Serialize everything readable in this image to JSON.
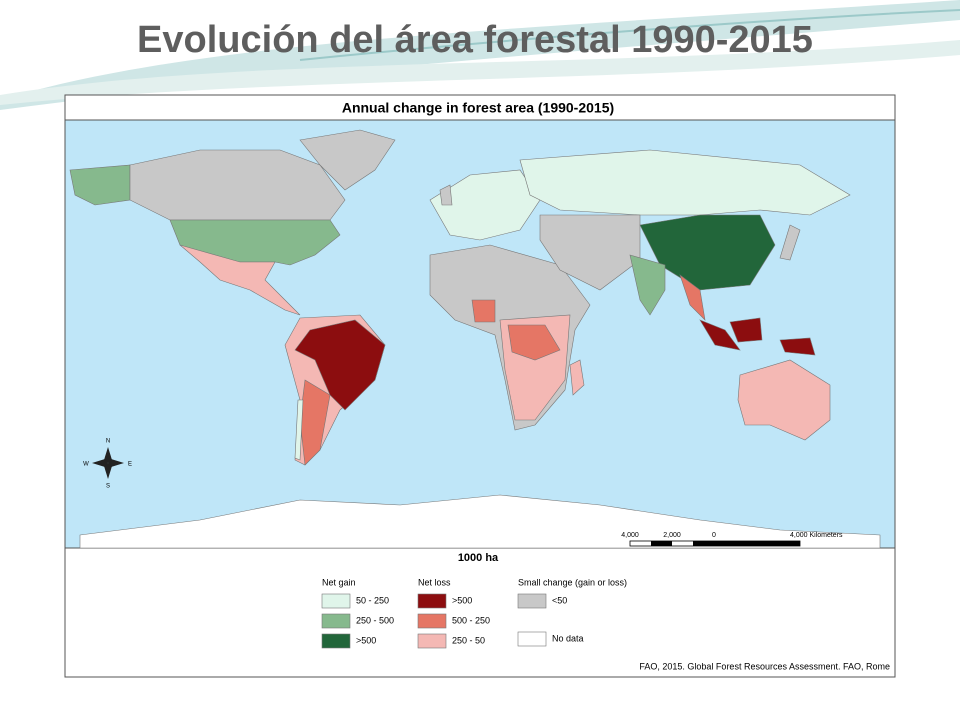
{
  "slide": {
    "title": "Evolución del área forestal 1990-2015"
  },
  "map": {
    "title": "Annual change in forest area (1990-2015)",
    "compass": {
      "n": "N",
      "s": "S",
      "e": "E",
      "w": "W"
    },
    "scale_labels": [
      "4,000",
      "2,000",
      "0",
      "4,000 Kilometers"
    ],
    "legend": {
      "unit": "1000 ha",
      "groups": [
        {
          "title": "Net gain",
          "items": [
            {
              "label": "50 - 250",
              "color": "#e0f5ea"
            },
            {
              "label": "250 - 500",
              "color": "#86b98d"
            },
            {
              "label": ">500",
              "color": "#22663a"
            }
          ]
        },
        {
          "title": "Net loss",
          "items": [
            {
              "label": ">500",
              "color": "#8c0d0f"
            },
            {
              "label": "500 - 250",
              "color": "#e57665"
            },
            {
              "label": "250 - 50",
              "color": "#f4b8b4"
            }
          ]
        },
        {
          "title": "Small change (gain or loss)",
          "items": [
            {
              "label": "<50",
              "color": "#c8c8c8"
            },
            {
              "label": "No data",
              "color": "#ffffff"
            }
          ]
        }
      ]
    },
    "source": "FAO, 2015. Global Forest Resources Assessment. FAO, Rome"
  }
}
